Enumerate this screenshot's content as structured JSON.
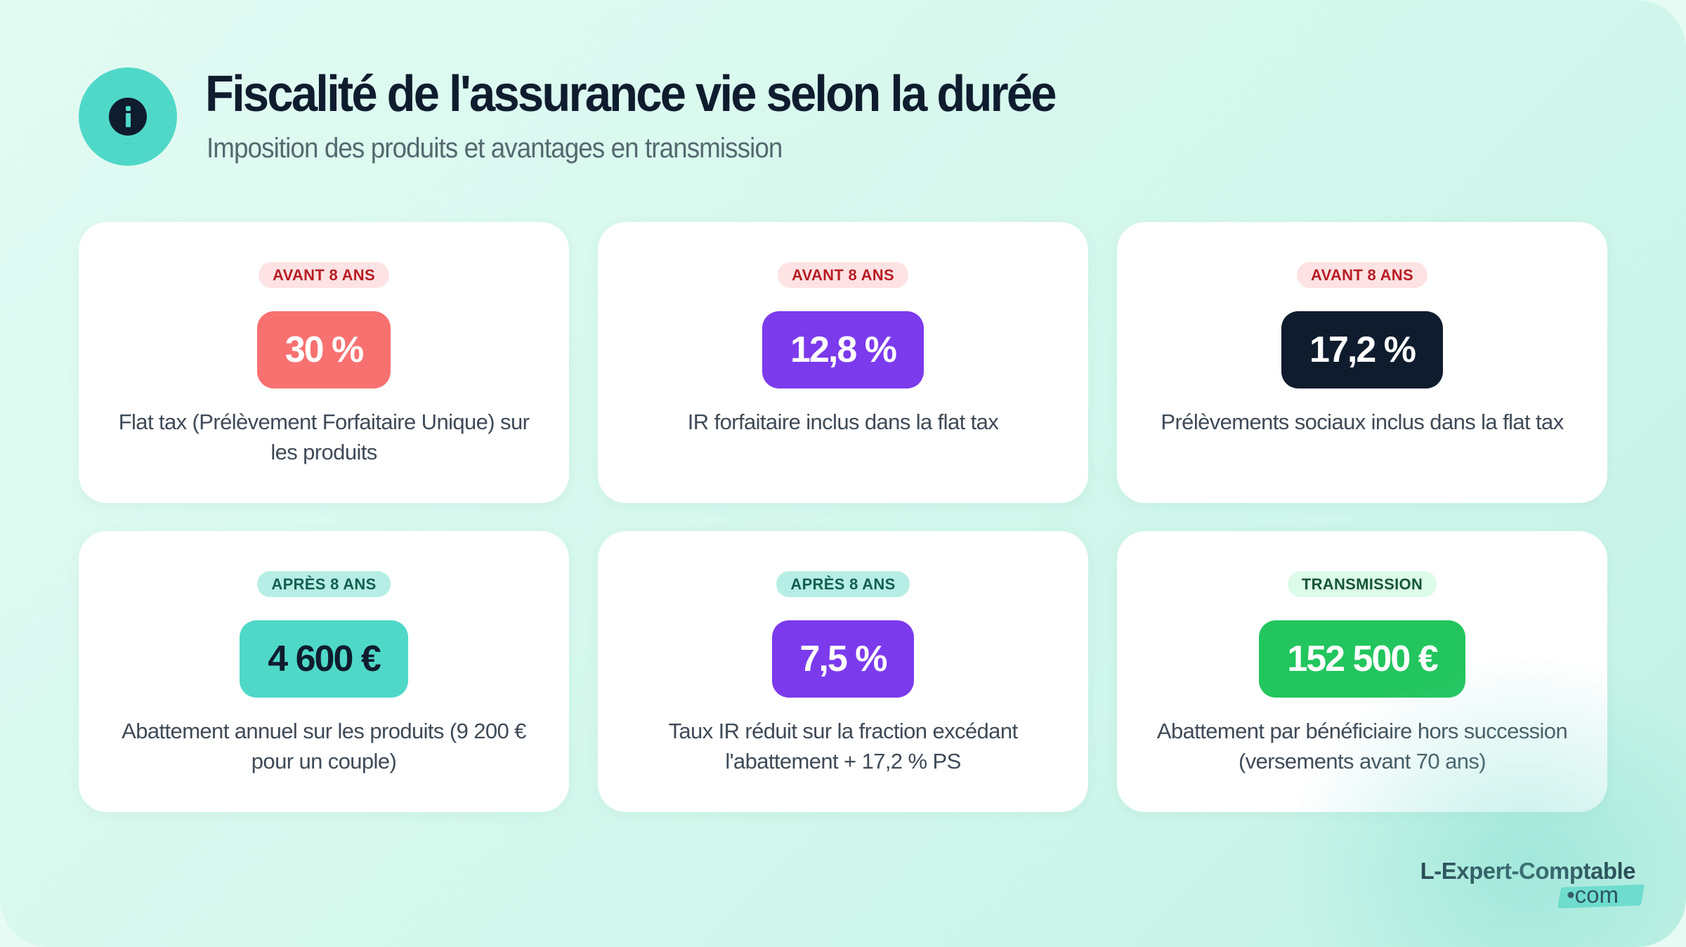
{
  "header": {
    "icon": "info-icon",
    "title": "Fiscalité de l'assurance vie selon la durée",
    "subtitle": "Imposition des produits et avantages en transmission"
  },
  "cards": [
    {
      "badge": "AVANT 8 ANS",
      "badge_variant": "before",
      "value": "30 %",
      "value_bg": "#f87171",
      "value_color": "#ffffff",
      "description": "Flat tax (Prélèvement Forfaitaire Unique) sur les produits"
    },
    {
      "badge": "AVANT 8 ANS",
      "badge_variant": "before",
      "value": "12,8 %",
      "value_bg": "#7c3aed",
      "value_color": "#ffffff",
      "description": "IR forfaitaire inclus dans la flat tax"
    },
    {
      "badge": "AVANT 8 ANS",
      "badge_variant": "before",
      "value": "17,2 %",
      "value_bg": "#0f1c2e",
      "value_color": "#ffffff",
      "description": "Prélèvements sociaux inclus dans la flat tax"
    },
    {
      "badge": "APRÈS 8 ANS",
      "badge_variant": "after",
      "value": "4 600 €",
      "value_bg": "#4fd8c8",
      "value_color": "#0f1c2e",
      "description": "Abattement annuel sur les produits (9 200 € pour un couple)"
    },
    {
      "badge": "APRÈS 8 ANS",
      "badge_variant": "after",
      "value": "7,5 %",
      "value_bg": "#7c3aed",
      "value_color": "#ffffff",
      "description": "Taux IR réduit sur la fraction excédant l'abattement + 17,2 % PS"
    },
    {
      "badge": "TRANSMISSION",
      "badge_variant": "transmission",
      "value": "152 500 €",
      "value_bg": "#22c55e",
      "value_color": "#ffffff",
      "description": "Abattement par bénéficiaire hors succession (versements avant 70 ans)"
    }
  ],
  "logo": {
    "name": "L-Expert-Comptable",
    "tld": "•com"
  },
  "colors": {
    "accent_teal": "#4fd8c8",
    "navy": "#0f1c2e",
    "coral": "#f87171",
    "purple": "#7c3aed",
    "green": "#22c55e"
  }
}
